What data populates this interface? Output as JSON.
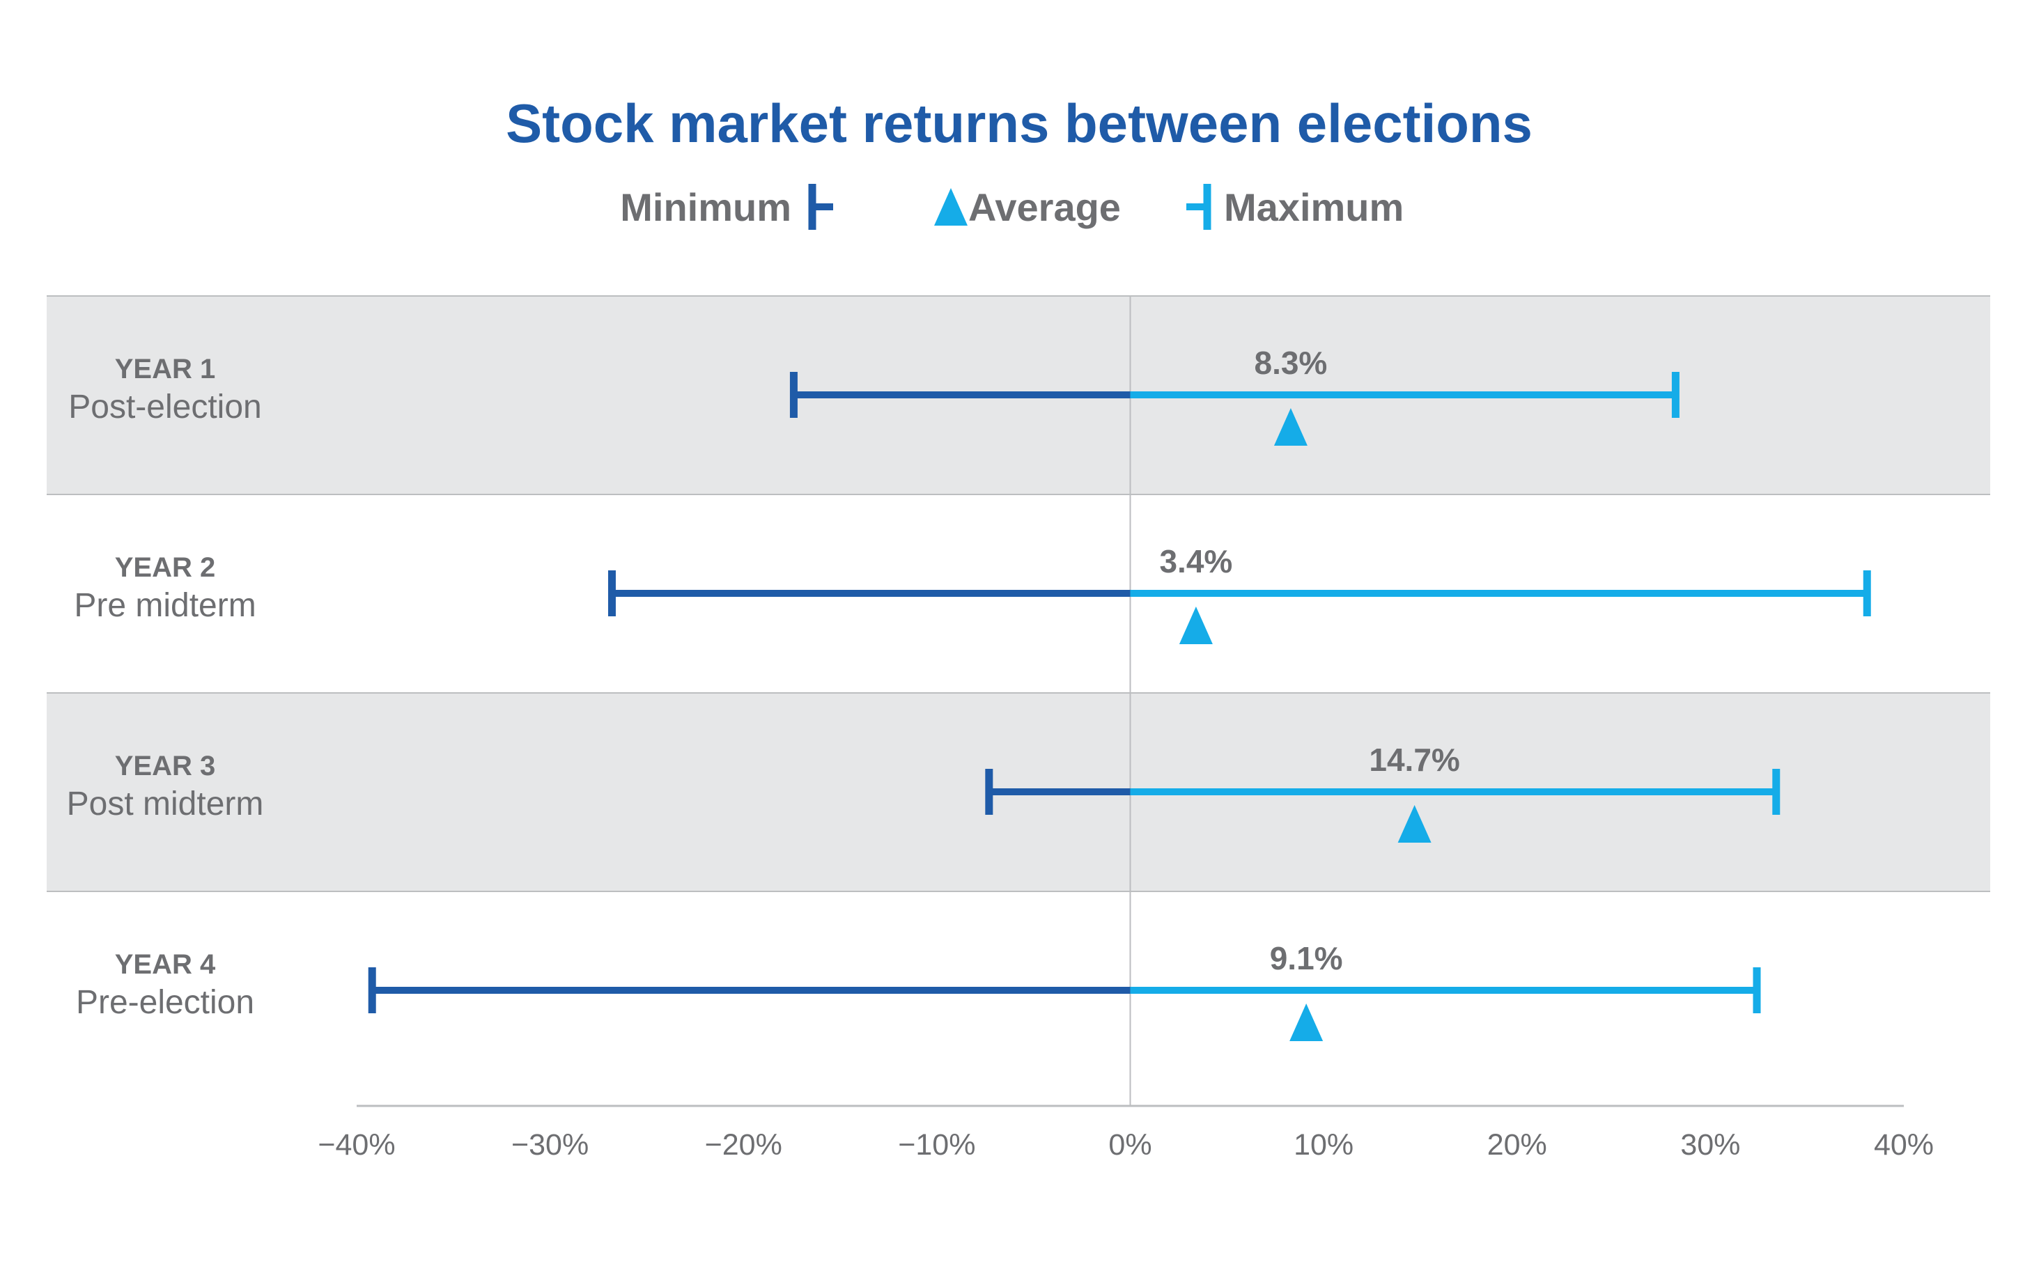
{
  "chart_data": {
    "type": "range",
    "title": "Stock market returns between elections",
    "legend": [
      {
        "key": "min",
        "label": "Minimum"
      },
      {
        "key": "avg",
        "label": "Average"
      },
      {
        "key": "max",
        "label": "Maximum"
      }
    ],
    "legend_placement": "top-center",
    "xlim": [
      -40,
      40
    ],
    "x_ticks": [
      -40,
      -30,
      -20,
      -10,
      0,
      10,
      20,
      30,
      40
    ],
    "x_tick_labels": [
      "−40%",
      "−30%",
      "−20%",
      "−10%",
      "0%",
      "10%",
      "20%",
      "30%",
      "40%"
    ],
    "unit": "%",
    "rows": [
      {
        "year": "YEAR 1",
        "label": "Post-election",
        "min": -17.4,
        "max": 28.2,
        "avg": 8.3,
        "avg_label": "8.3%",
        "shaded": true
      },
      {
        "year": "YEAR 2",
        "label": "Pre midterm",
        "min": -26.8,
        "max": 38.1,
        "avg": 3.4,
        "avg_label": "3.4%",
        "shaded": false
      },
      {
        "year": "YEAR 3",
        "label": "Post midterm",
        "min": -7.3,
        "max": 33.4,
        "avg": 14.7,
        "avg_label": "14.7%",
        "shaded": true
      },
      {
        "year": "YEAR 4",
        "label": "Pre-election",
        "min": -39.2,
        "max": 32.4,
        "avg": 9.1,
        "avg_label": "9.1%",
        "shaded": false
      }
    ],
    "colors": {
      "title": "#1f5ba8",
      "minimum": "#1f5ba8",
      "maximum": "#15ace8",
      "average": "#15ace8",
      "text": "#6d6e71",
      "row_shade": "#e6e7e8",
      "divider": "#bcbec0",
      "axis": "#bcbec0"
    }
  }
}
